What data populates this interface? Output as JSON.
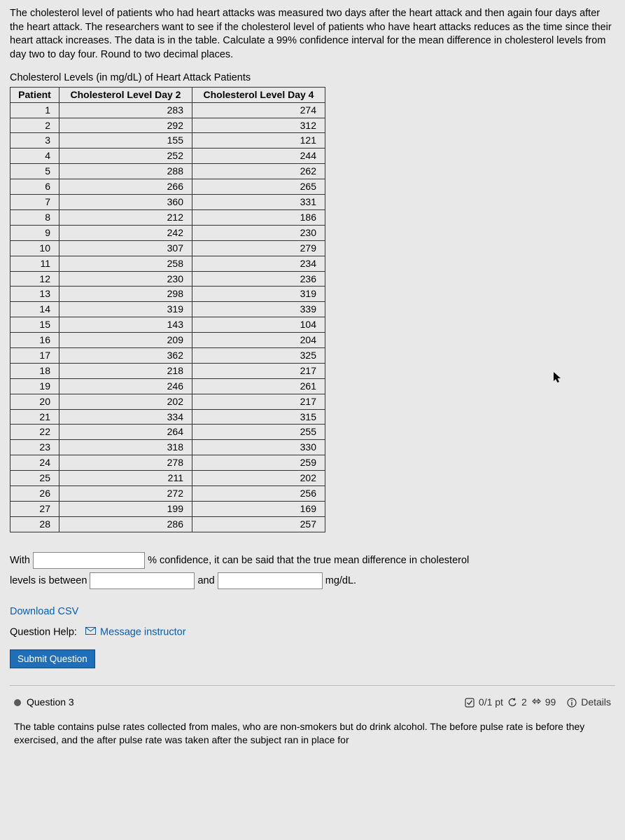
{
  "problem": {
    "text": "The cholesterol level of patients who had heart attacks was measured two days after the heart attack and then again four days after the heart attack. The researchers want to see if the cholesterol level of patients who have heart attacks reduces as the time since their heart attack increases. The data is in the table. Calculate a 99% confidence interval for the mean difference in cholesterol levels from day two to day four. Round to two decimal places."
  },
  "table": {
    "caption": "Cholesterol Levels (in mg/dL) of Heart Attack Patients",
    "columns": [
      "Patient",
      "Cholesterol Level Day 2",
      "Cholesterol Level Day 4"
    ],
    "rows": [
      [
        1,
        283,
        274
      ],
      [
        2,
        292,
        312
      ],
      [
        3,
        155,
        121
      ],
      [
        4,
        252,
        244
      ],
      [
        5,
        288,
        262
      ],
      [
        6,
        266,
        265
      ],
      [
        7,
        360,
        331
      ],
      [
        8,
        212,
        186
      ],
      [
        9,
        242,
        230
      ],
      [
        10,
        307,
        279
      ],
      [
        11,
        258,
        234
      ],
      [
        12,
        230,
        236
      ],
      [
        13,
        298,
        319
      ],
      [
        14,
        319,
        339
      ],
      [
        15,
        143,
        104
      ],
      [
        16,
        209,
        204
      ],
      [
        17,
        362,
        325
      ],
      [
        18,
        218,
        217
      ],
      [
        19,
        246,
        261
      ],
      [
        20,
        202,
        217
      ],
      [
        21,
        334,
        315
      ],
      [
        22,
        264,
        255
      ],
      [
        23,
        318,
        330
      ],
      [
        24,
        278,
        259
      ],
      [
        25,
        211,
        202
      ],
      [
        26,
        272,
        256
      ],
      [
        27,
        199,
        169
      ],
      [
        28,
        286,
        257
      ]
    ]
  },
  "answer": {
    "prefix": "With",
    "mid1": "% confidence, it can be said that the true mean difference in cholesterol",
    "line2a": "levels is between",
    "and": "and",
    "unit": "mg/dL."
  },
  "links": {
    "download": "Download CSV",
    "help_label": "Question Help:",
    "message": "Message instructor"
  },
  "buttons": {
    "submit": "Submit Question"
  },
  "q3": {
    "label": "Question 3",
    "score_prefix": "0/1 pt",
    "retries": "2",
    "attempts": "99",
    "details": "Details",
    "text": "The table contains pulse rates collected from males, who are non-smokers but do drink alcohol. The before pulse rate is before they exercised, and the after pulse rate was taken after the subject ran in place for"
  }
}
